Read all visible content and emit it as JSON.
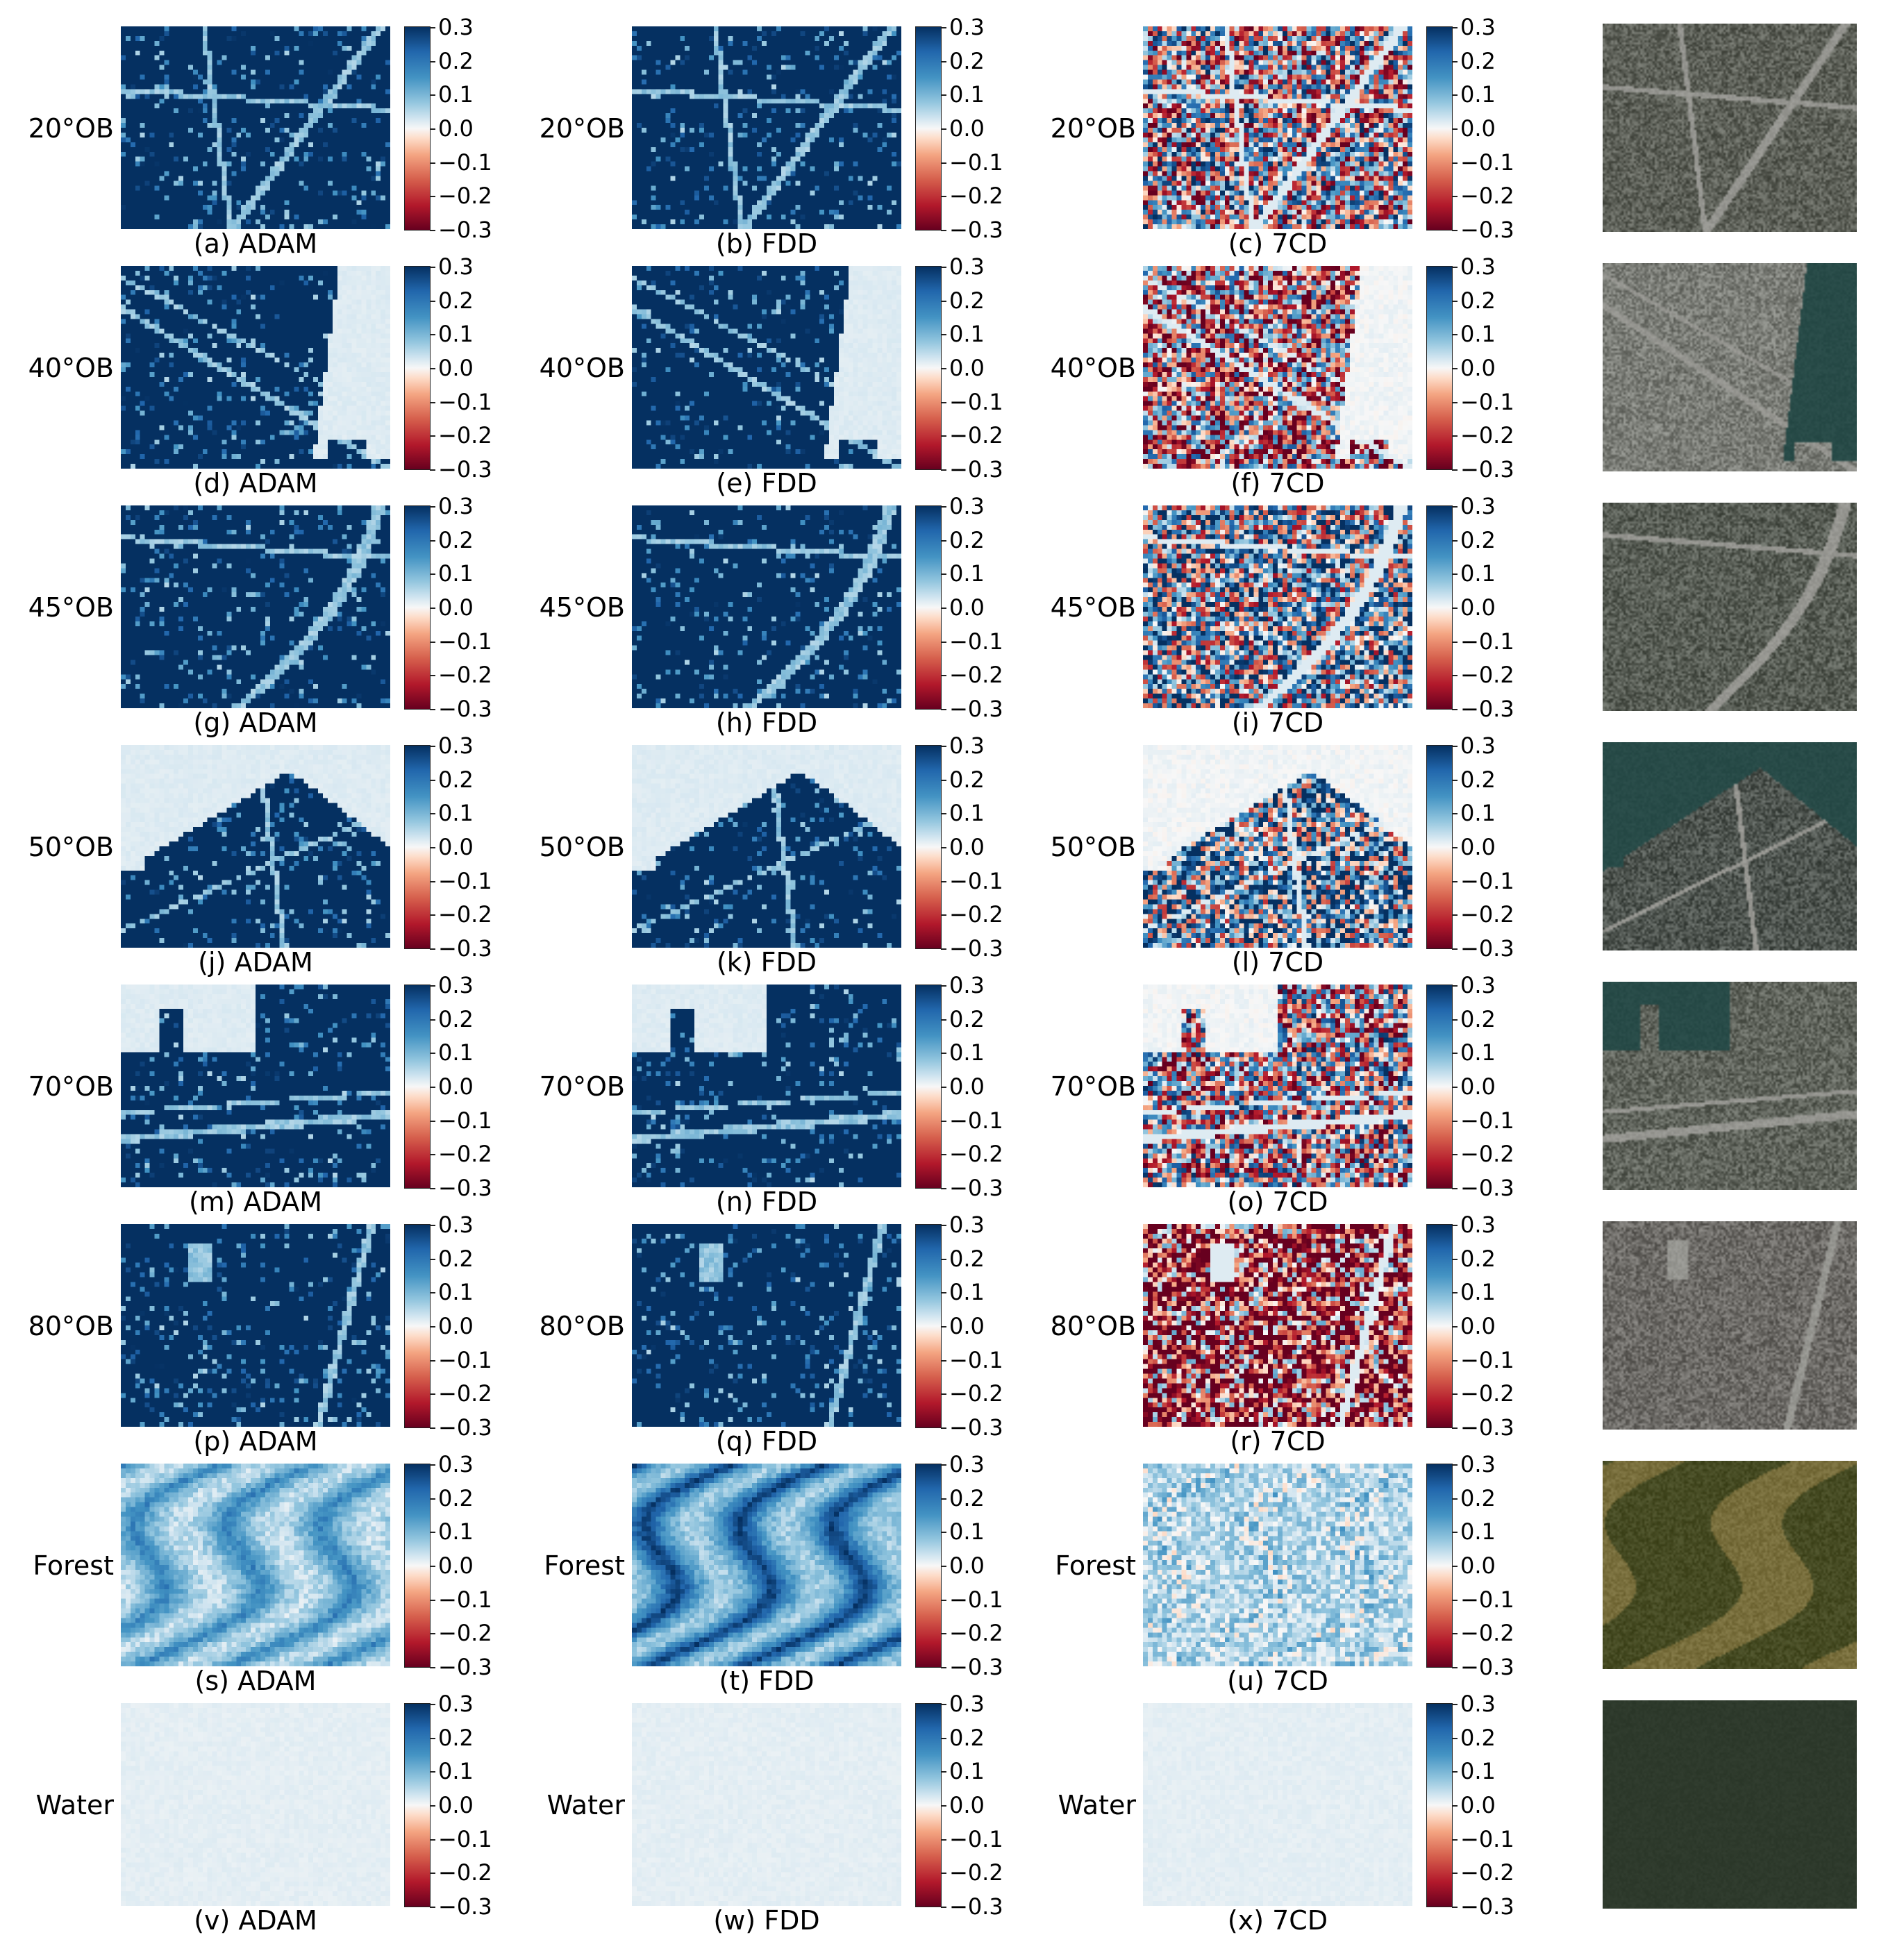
{
  "chart_data": {
    "type": "heatmap",
    "colormap": "RdBu",
    "colorbar": {
      "range": [
        -0.3,
        0.3
      ],
      "ticks": [
        "0.3",
        "0.2",
        "0.1",
        "0.0",
        "−0.1",
        "−0.2",
        "−0.3"
      ]
    },
    "methods": [
      "ADAM",
      "FDD",
      "7CD"
    ],
    "rows": [
      {
        "label": "20°OB",
        "captions": [
          "(a) ADAM",
          "(b) FDD",
          "(c) 7CD"
        ],
        "scene": "urban-grid",
        "photo_tone": "#5d6058",
        "approx_mean": [
          0.29,
          0.29,
          0.0
        ]
      },
      {
        "label": "40°OB",
        "captions": [
          "(d) ADAM",
          "(e) FDD",
          "(f) 7CD"
        ],
        "scene": "urban-coast",
        "photo_tone": "#7a7c76",
        "approx_mean": [
          0.25,
          0.25,
          -0.08
        ]
      },
      {
        "label": "45°OB",
        "captions": [
          "(g) ADAM",
          "(h) FDD",
          "(i) 7CD"
        ],
        "scene": "urban-highway",
        "photo_tone": "#585d55",
        "approx_mean": [
          0.27,
          0.28,
          0.08
        ]
      },
      {
        "label": "50°OB",
        "captions": [
          "(j) ADAM",
          "(k) FDD",
          "(l) 7CD"
        ],
        "scene": "urban-peninsula",
        "photo_tone": "#4f5550",
        "approx_mean": [
          0.25,
          0.26,
          0.12
        ]
      },
      {
        "label": "70°OB",
        "captions": [
          "(m) ADAM",
          "(n) FDD",
          "(o) 7CD"
        ],
        "scene": "urban-marina",
        "photo_tone": "#60645c",
        "approx_mean": [
          0.26,
          0.26,
          -0.02
        ]
      },
      {
        "label": "80°OB",
        "captions": [
          "(p) ADAM",
          "(q) FDD",
          "(r) 7CD"
        ],
        "scene": "urban-dense",
        "photo_tone": "#6c6a66",
        "approx_mean": [
          0.27,
          0.25,
          -0.2
        ]
      },
      {
        "label": "Forest",
        "captions": [
          "(s) ADAM",
          "(t) FDD",
          "(u) 7CD"
        ],
        "scene": "forest",
        "photo_tone": "#6b6532",
        "approx_mean": [
          0.1,
          0.16,
          0.05
        ]
      },
      {
        "label": "Water",
        "captions": [
          "(v) ADAM",
          "(w) FDD",
          "(x) 7CD"
        ],
        "scene": "water",
        "photo_tone": "#2e3a2c",
        "approx_mean": [
          0.02,
          0.02,
          0.0
        ]
      }
    ]
  }
}
